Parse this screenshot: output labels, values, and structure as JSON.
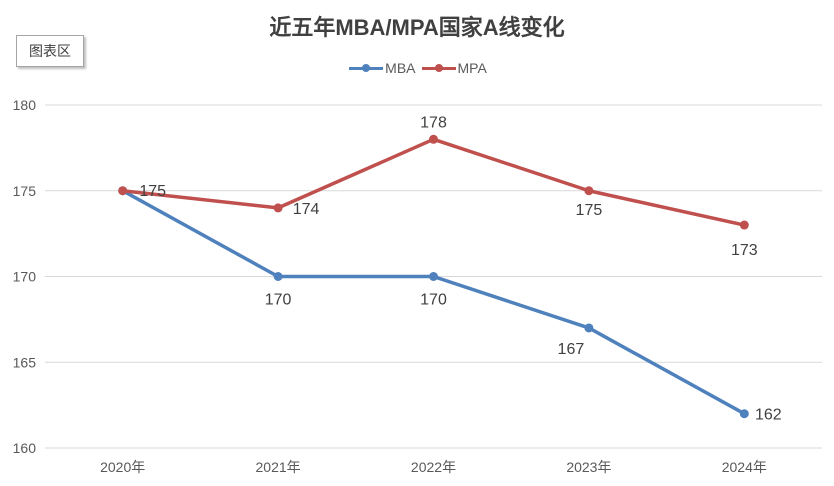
{
  "chart_area_tag": "图表区",
  "chart_data": {
    "type": "line",
    "title": "近五年MBA/MPA国家A线变化",
    "xlabel": "",
    "ylabel": "",
    "categories": [
      "2020年",
      "2021年",
      "2022年",
      "2023年",
      "2024年"
    ],
    "ylim": [
      160,
      180
    ],
    "yticks": [
      160,
      165,
      170,
      175,
      180
    ],
    "grid": true,
    "legend_position": "top-center",
    "series": [
      {
        "name": "MBA",
        "color": "#4f81bd",
        "values": [
          175,
          170,
          170,
          167,
          162
        ]
      },
      {
        "name": "MPA",
        "color": "#c0504d",
        "values": [
          175,
          174,
          178,
          175,
          173
        ]
      }
    ]
  }
}
